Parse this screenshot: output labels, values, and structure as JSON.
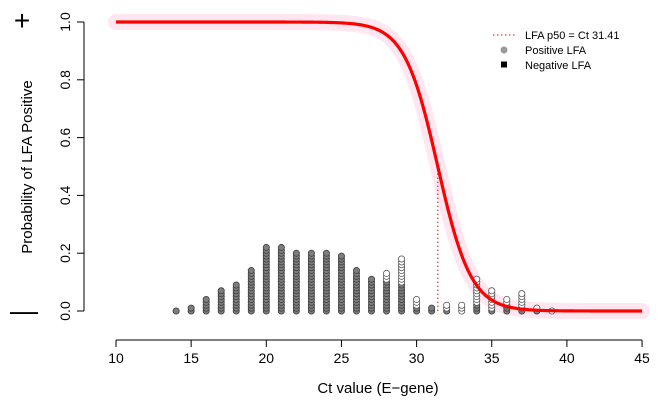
{
  "chart_data": {
    "type": "scatter",
    "xlabel": "Ct value (E−gene)",
    "ylabel": "Probability of LFA Positive",
    "xlim": [
      10,
      45
    ],
    "ylim": [
      0,
      1
    ],
    "xticks": [
      "10",
      "15",
      "20",
      "25",
      "30",
      "35",
      "40",
      "45"
    ],
    "yticks": [
      "0.0",
      "0.2",
      "0.4",
      "0.6",
      "0.8",
      "1.0"
    ],
    "side_labels": {
      "plus": "+",
      "minus": "—"
    },
    "p50": {
      "label": "LFA p50 = Ct 31.41",
      "x": 31.41,
      "color": "#ff0000"
    },
    "curve": {
      "midpoint": 31.41,
      "slope": 0.9,
      "color": "#ff0000",
      "band_color": "#ffd6e8"
    },
    "legend": {
      "position": "top-right",
      "entries": [
        {
          "label": "LFA p50 = Ct 31.41",
          "kind": "dotted-line"
        },
        {
          "label": "Positive LFA",
          "kind": "filled-circle"
        },
        {
          "label": "Negative LFA",
          "kind": "square"
        }
      ]
    },
    "dot_step": 0.01,
    "columns": [
      {
        "x": 14,
        "pos": 1,
        "neg": 0
      },
      {
        "x": 15,
        "pos": 2,
        "neg": 0
      },
      {
        "x": 16,
        "pos": 5,
        "neg": 0
      },
      {
        "x": 17,
        "pos": 8,
        "neg": 0
      },
      {
        "x": 18,
        "pos": 10,
        "neg": 0
      },
      {
        "x": 19,
        "pos": 15,
        "neg": 0
      },
      {
        "x": 20,
        "pos": 23,
        "neg": 0
      },
      {
        "x": 21,
        "pos": 23,
        "neg": 0
      },
      {
        "x": 22,
        "pos": 21,
        "neg": 0
      },
      {
        "x": 23,
        "pos": 21,
        "neg": 0
      },
      {
        "x": 24,
        "pos": 21,
        "neg": 0
      },
      {
        "x": 25,
        "pos": 20,
        "neg": 0
      },
      {
        "x": 26,
        "pos": 15,
        "neg": 0
      },
      {
        "x": 27,
        "pos": 12,
        "neg": 0
      },
      {
        "x": 28,
        "pos": 11,
        "neg": 3
      },
      {
        "x": 29,
        "pos": 10,
        "neg": 9
      },
      {
        "x": 30,
        "pos": 2,
        "neg": 3
      },
      {
        "x": 31,
        "pos": 2,
        "neg": 0
      },
      {
        "x": 32,
        "pos": 1,
        "neg": 2
      },
      {
        "x": 33,
        "pos": 0,
        "neg": 3
      },
      {
        "x": 34,
        "pos": 3,
        "neg": 9
      },
      {
        "x": 35,
        "pos": 1,
        "neg": 7
      },
      {
        "x": 36,
        "pos": 2,
        "neg": 3
      },
      {
        "x": 37,
        "pos": 1,
        "neg": 6
      },
      {
        "x": 38,
        "pos": 1,
        "neg": 1
      },
      {
        "x": 39,
        "pos": 0,
        "neg": 1
      }
    ]
  }
}
